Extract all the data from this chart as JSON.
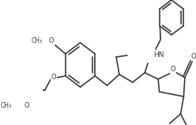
{
  "line_color": "#3a3a3a",
  "line_width": 1.2,
  "font_size": 6.0,
  "bg_color": "#ffffff",
  "figsize": [
    2.48,
    1.58
  ],
  "dpi": 100,
  "xlim": [
    0,
    248
  ],
  "ylim": [
    0,
    158
  ]
}
